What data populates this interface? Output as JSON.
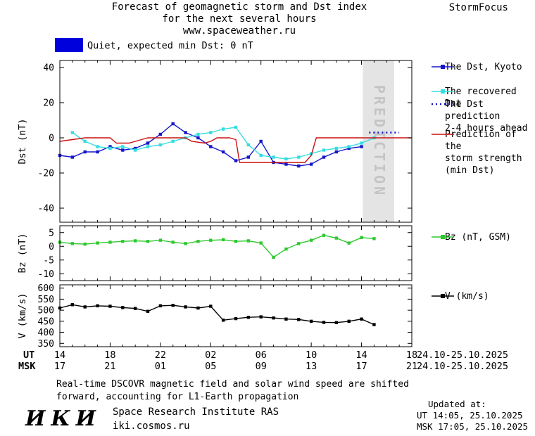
{
  "header": {
    "title_line1": "Forecast of geomagnetic storm and Dst index",
    "title_line2": "for the next several hours",
    "title_line3": "www.spaceweather.ru",
    "brand": "StormFocus"
  },
  "status": {
    "label": "Quiet, expected min Dst: 0 nT",
    "swatch_color": "#0000dd"
  },
  "legend": {
    "dst_kyoto": {
      "label": "The Dst, Kyoto",
      "color": "#1616c8",
      "style": "marker"
    },
    "recovered": {
      "label": "The recovered Dst",
      "color": "#35dde2",
      "style": "marker"
    },
    "prediction": {
      "line1": "The Dst prediction",
      "line2": "2-4 hours ahead",
      "color": "#1616c8",
      "style": "dotted"
    },
    "storm": {
      "line1": "Prediction of the",
      "line2": "storm strength",
      "line3": "(min Dst)",
      "color": "#cc1111",
      "style": "solid"
    },
    "bz": {
      "label": "Bz (nT, GSM)",
      "color": "#2fc82f",
      "style": "marker"
    },
    "v": {
      "label": "V (km/s)",
      "color": "#000000",
      "style": "marker"
    }
  },
  "xaxis": {
    "ut_label": "UT",
    "msk_label": "MSK",
    "ut_ticks": [
      "14",
      "18",
      "22",
      "02",
      "06",
      "10",
      "14",
      "18"
    ],
    "msk_ticks": [
      "17",
      "21",
      "01",
      "05",
      "09",
      "13",
      "17",
      "21"
    ],
    "ut_date": "24.10-25.10.2025",
    "msk_date": "24.10-25.10.2025"
  },
  "chart_data": [
    {
      "type": "line",
      "ylabel": "Dst (nT)",
      "xlim": [
        0,
        28
      ],
      "ylim": [
        -48,
        44
      ],
      "yticks": [
        40,
        20,
        0,
        -20,
        -40
      ],
      "xticks": [
        0,
        4,
        8,
        12,
        16,
        20,
        24,
        28
      ],
      "prediction_band": {
        "x_from": 24.1,
        "x_to": 26.6,
        "color": "#e4e4e4",
        "label": "PREDICTION",
        "label_color": "#c4c4c4"
      },
      "series": [
        {
          "name": "The Dst, Kyoto",
          "color": "#1616c8",
          "style": "marker",
          "x": [
            0,
            1,
            2,
            3,
            4,
            5,
            6,
            7,
            8,
            9,
            10,
            11,
            12,
            13,
            14,
            15,
            16,
            17,
            18,
            19,
            20,
            21,
            22,
            23,
            24
          ],
          "y": [
            -10,
            -11,
            -8,
            -8,
            -5,
            -7,
            -6,
            -3,
            2,
            8,
            3,
            0,
            -5,
            -8,
            -13,
            -11,
            -2,
            -14,
            -15,
            -16,
            -15,
            -11,
            -8,
            -6,
            -5
          ]
        },
        {
          "name": "The recovered Dst",
          "color": "#35dde2",
          "style": "marker",
          "x": [
            1,
            2,
            3,
            4,
            5,
            6,
            7,
            8,
            9,
            10,
            11,
            12,
            13,
            14,
            15,
            16,
            17,
            18,
            19,
            20,
            21,
            22,
            23,
            24,
            25
          ],
          "y": [
            3,
            -2,
            -5,
            -6,
            -5,
            -7,
            -5,
            -4,
            -2,
            0,
            2,
            3,
            5,
            6,
            -4,
            -10,
            -11,
            -12,
            -11,
            -9,
            -7,
            -6,
            -5,
            -3,
            0
          ]
        },
        {
          "name": "The Dst prediction 2-4 hours ahead",
          "color": "#1616c8",
          "style": "dotted",
          "x": [
            24.6,
            25.4,
            26.2,
            27.0
          ],
          "y": [
            3,
            3,
            3,
            3
          ]
        },
        {
          "name": "Prediction of the storm strength (min Dst)",
          "color": "#cc1111",
          "style": "solid",
          "x": [
            0,
            1,
            2,
            4,
            4.5,
            5.5,
            6.5,
            7,
            10,
            10.5,
            11.5,
            12,
            12.5,
            13.5,
            14,
            14.3,
            19.5,
            20,
            20.4,
            28
          ],
          "y": [
            -2,
            -1,
            0,
            0,
            -3,
            -3,
            -1,
            0,
            0,
            -2,
            -3,
            -2,
            0,
            0,
            -1,
            -14,
            -14,
            -10,
            0,
            0
          ]
        }
      ]
    },
    {
      "type": "line",
      "ylabel": "Bz (nT)",
      "xlim": [
        0,
        28
      ],
      "ylim": [
        -12.5,
        7.5
      ],
      "yticks": [
        5,
        0,
        -5,
        -10
      ],
      "xticks": [
        0,
        4,
        8,
        12,
        16,
        20,
        24,
        28
      ],
      "series": [
        {
          "name": "Bz (nT, GSM)",
          "color": "#2fc82f",
          "style": "marker",
          "x": [
            0,
            1,
            2,
            3,
            4,
            5,
            6,
            7,
            8,
            9,
            10,
            11,
            12,
            13,
            14,
            15,
            16,
            17,
            18,
            19,
            20,
            21,
            22,
            23,
            24,
            25
          ],
          "y": [
            1.5,
            1,
            0.8,
            1.2,
            1.5,
            1.8,
            2,
            1.8,
            2.2,
            1.5,
            1,
            1.8,
            2.2,
            2.4,
            1.8,
            2,
            1.2,
            -4,
            -1,
            1,
            2.2,
            4,
            3,
            1.2,
            3.2,
            2.8
          ]
        }
      ]
    },
    {
      "type": "line",
      "ylabel": "V (km/s)",
      "xlim": [
        0,
        28
      ],
      "ylim": [
        335,
        615
      ],
      "yticks": [
        600,
        550,
        500,
        450,
        400,
        350
      ],
      "xticks": [
        0,
        4,
        8,
        12,
        16,
        20,
        24,
        28
      ],
      "series": [
        {
          "name": "V (km/s)",
          "color": "#000000",
          "style": "marker",
          "x": [
            0,
            1,
            2,
            3,
            4,
            5,
            6,
            7,
            8,
            9,
            10,
            11,
            12,
            13,
            14,
            15,
            16,
            17,
            18,
            19,
            20,
            21,
            22,
            23,
            24,
            25
          ],
          "y": [
            510,
            525,
            515,
            520,
            518,
            512,
            508,
            495,
            520,
            522,
            515,
            510,
            518,
            455,
            462,
            468,
            470,
            465,
            460,
            458,
            450,
            445,
            444,
            450,
            460,
            435
          ]
        }
      ]
    }
  ],
  "footer": {
    "note_line1": "Real-time DSCOVR magnetic field and solar wind speed are shifted",
    "note_line2": "forward, accounting for L1-Earth propagation",
    "logo": "ИКИ",
    "institute": "Space Research Institute RAS",
    "site": "iki.cosmos.ru",
    "updated_label": "Updated at:",
    "updated_ut": "UT  14:05, 25.10.2025",
    "updated_msk": "MSK 17:05, 25.10.2025"
  }
}
